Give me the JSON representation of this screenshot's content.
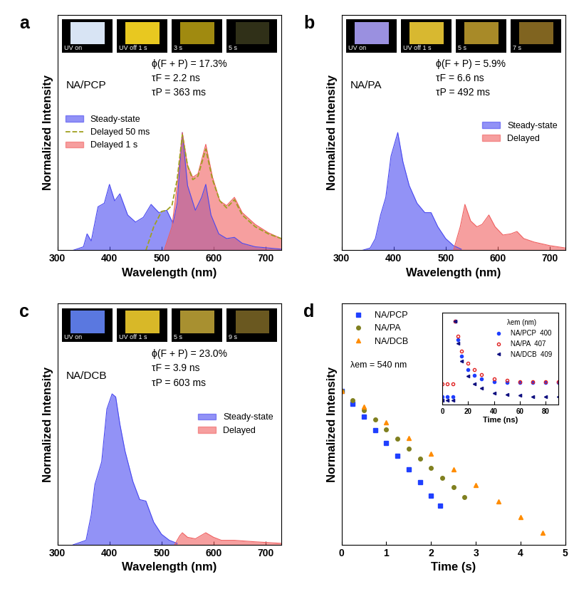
{
  "chart_data": [
    {
      "type": "area",
      "panel_label": "a",
      "xlabel": "Wavelength (nm)",
      "ylabel": "Normalized Intensity",
      "xlim": [
        300,
        730
      ],
      "xticks": [
        300,
        400,
        500,
        600,
        700
      ],
      "ylim": [
        0,
        2.0
      ],
      "tick_labels": "x",
      "legend": "center left",
      "annotations": [
        "NA/PCP",
        "ϕ(F + P) = 17.3%",
        "τF = 2.2 ns",
        "τP = 363 ms"
      ],
      "photos": {
        "labels": [
          "UV on",
          "UV off 1 s",
          "3 s",
          "5 s"
        ],
        "colors": [
          "#d8e4f4",
          "#e8c820",
          "#a08a10",
          "#303018"
        ]
      },
      "series": [
        {
          "name": "Steady-state",
          "color": "#4a4af0",
          "x": [
            330,
            350,
            357,
            365,
            378,
            390,
            400,
            410,
            420,
            435,
            450,
            465,
            480,
            495,
            510,
            522,
            530,
            540,
            550,
            565,
            577,
            585,
            595,
            610,
            625,
            640,
            655,
            680,
            730
          ],
          "values": [
            0,
            0.03,
            0.14,
            0.08,
            0.37,
            0.4,
            0.56,
            0.42,
            0.48,
            0.3,
            0.24,
            0.28,
            0.39,
            0.32,
            0.34,
            0.23,
            0.4,
            1.0,
            0.55,
            0.34,
            0.45,
            0.56,
            0.3,
            0.14,
            0.1,
            0.11,
            0.06,
            0.03,
            0.01
          ]
        },
        {
          "name": "Delayed 50 ms",
          "color": "#a0a020",
          "line_style": "dashed",
          "x": [
            470,
            485,
            500,
            510,
            520,
            530,
            540,
            550,
            560,
            570,
            585,
            598,
            612,
            625,
            640,
            655,
            680,
            705,
            730
          ],
          "values": [
            0.0,
            0.2,
            0.33,
            0.34,
            0.38,
            0.6,
            0.98,
            0.72,
            0.6,
            0.63,
            0.86,
            0.6,
            0.42,
            0.36,
            0.43,
            0.3,
            0.2,
            0.14,
            0.1
          ]
        },
        {
          "name": "Delayed 1 s",
          "color": "#f06060",
          "x": [
            505,
            520,
            530,
            540,
            550,
            560,
            570,
            585,
            598,
            612,
            625,
            640,
            655,
            680,
            705,
            730
          ],
          "values": [
            0,
            0.2,
            0.55,
            1.0,
            0.72,
            0.62,
            0.65,
            0.9,
            0.62,
            0.42,
            0.38,
            0.45,
            0.32,
            0.22,
            0.15,
            0.1
          ]
        }
      ]
    },
    {
      "type": "area",
      "panel_label": "b",
      "xlabel": "Wavelength (nm)",
      "ylabel": "Normalized Intensity",
      "xlim": [
        300,
        730
      ],
      "xticks": [
        300,
        400,
        500,
        600,
        700
      ],
      "ylim": [
        0,
        2.0
      ],
      "tick_labels": "x",
      "legend": "center right",
      "annotations": [
        "NA/PA",
        "ϕ(F + P) = 5.9%",
        "τF = 6.6 ns",
        "τP = 492 ms"
      ],
      "photos": {
        "labels": [
          "UV on",
          "UV off 1 s",
          "5 s",
          "7 s"
        ],
        "colors": [
          "#9a90e0",
          "#d8b830",
          "#a88a28",
          "#806420"
        ]
      },
      "series": [
        {
          "name": "Steady-state",
          "color": "#4a4af0",
          "x": [
            340,
            355,
            365,
            375,
            385,
            395,
            408,
            418,
            430,
            445,
            460,
            472,
            485,
            500,
            515,
            530
          ],
          "values": [
            0,
            0.02,
            0.1,
            0.3,
            0.45,
            0.8,
            1.0,
            0.75,
            0.55,
            0.4,
            0.32,
            0.32,
            0.2,
            0.1,
            0.04,
            0.01
          ]
        },
        {
          "name": "Delayed",
          "color": "#f06060",
          "x": [
            515,
            528,
            537,
            548,
            560,
            570,
            583,
            595,
            610,
            625,
            637,
            650,
            670,
            700,
            730
          ],
          "values": [
            0,
            0.2,
            0.39,
            0.25,
            0.2,
            0.22,
            0.3,
            0.2,
            0.13,
            0.14,
            0.16,
            0.1,
            0.07,
            0.04,
            0.02
          ]
        }
      ]
    },
    {
      "type": "area",
      "panel_label": "c",
      "xlabel": "Wavelength (nm)",
      "ylabel": "Normalized Intensity",
      "xlim": [
        300,
        730
      ],
      "xticks": [
        300,
        400,
        500,
        600,
        700
      ],
      "ylim": [
        0,
        1.6
      ],
      "tick_labels": "x",
      "legend": "center right",
      "annotations": [
        "NA/DCB",
        "ϕ(F + P) = 23.0%",
        "τF = 3.9 ns",
        "τP = 603 ms"
      ],
      "photos": {
        "labels": [
          "UV on",
          "UV off 1 s",
          "5 s",
          "9 s"
        ],
        "colors": [
          "#5a78e0",
          "#d8b828",
          "#a89030",
          "#6a5820"
        ]
      },
      "series": [
        {
          "name": "Steady-state",
          "color": "#4a4af0",
          "x": [
            330,
            355,
            365,
            372,
            385,
            395,
            405,
            412,
            420,
            430,
            445,
            458,
            470,
            485,
            500,
            515,
            530
          ],
          "values": [
            0,
            0.03,
            0.2,
            0.4,
            0.55,
            0.9,
            1.0,
            0.98,
            0.8,
            0.62,
            0.42,
            0.3,
            0.29,
            0.15,
            0.07,
            0.03,
            0.01
          ]
        },
        {
          "name": "Delayed",
          "color": "#f06060",
          "x": [
            525,
            535,
            540,
            550,
            565,
            585,
            600,
            615,
            640,
            680,
            730
          ],
          "values": [
            0,
            0.06,
            0.08,
            0.05,
            0.04,
            0.08,
            0.05,
            0.03,
            0.03,
            0.02,
            0.01
          ]
        }
      ]
    },
    {
      "type": "scatter",
      "panel_label": "d",
      "xlabel": "Time (s)",
      "ylabel": "Normalized Intensity",
      "log": "y",
      "xlim": [
        0,
        5
      ],
      "xticks": [
        0,
        1,
        2,
        3,
        4,
        5
      ],
      "ylim": [
        0.0003,
        100
      ],
      "tick_labels": "x",
      "legend": "upper left",
      "annotations": [
        "λem = 540 nm"
      ],
      "series": [
        {
          "name": "NA/PCP",
          "color": "#1f3fff",
          "marker": "square",
          "x": [
            0,
            0.25,
            0.5,
            0.75,
            1,
            1.25,
            1.5,
            1.75,
            2,
            2.2
          ],
          "values": [
            1,
            0.502,
            0.252,
            0.127,
            0.0637,
            0.032,
            0.0161,
            0.0081,
            0.004,
            0.0024
          ]
        },
        {
          "name": "NA/PA",
          "color": "#808020",
          "marker": "circle",
          "x": [
            0,
            0.25,
            0.5,
            0.75,
            1,
            1.25,
            1.5,
            1.75,
            2,
            2.25,
            2.5,
            2.75
          ],
          "values": [
            1,
            0.602,
            0.362,
            0.218,
            0.131,
            0.0788,
            0.0474,
            0.0285,
            0.0171,
            0.0103,
            0.0062,
            0.0037
          ]
        },
        {
          "name": "NA/DCB",
          "color": "#ff8c00",
          "marker": "triangle",
          "x": [
            0,
            0.5,
            1,
            1.5,
            2,
            2.5,
            3,
            3.5,
            4,
            4.5
          ],
          "values": [
            1,
            0.436,
            0.19,
            0.0831,
            0.0362,
            0.0158,
            0.0069,
            0.003,
            0.0013,
            0.00057
          ]
        }
      ],
      "inset": {
        "type": "scatter",
        "xlabel": "Time (ns)",
        "xlim": [
          0,
          90
        ],
        "xticks": [
          0,
          20,
          40,
          60,
          80
        ],
        "ylim": [
          0,
          1.1
        ],
        "tick_labels": "x",
        "legend": "upper right",
        "legend_title": "λem (nm)",
        "series": [
          {
            "name": "NA/PCP  400",
            "color": "#1f3fff",
            "marker": "circle",
            "x": [
              0,
              4,
              8,
              10,
              12,
              15,
              20,
              25,
              30,
              40,
              50,
              60,
              70,
              80,
              90
            ],
            "values": [
              0.1,
              0.1,
              0.1,
              1.0,
              0.78,
              0.58,
              0.42,
              0.35,
              0.31,
              0.28,
              0.27,
              0.27,
              0.27,
              0.27,
              0.27
            ]
          },
          {
            "name": "NA/PA  407",
            "color": "#e02020",
            "marker": "open circle",
            "x": [
              0,
              4,
              8,
              10,
              12,
              15,
              20,
              25,
              30,
              40,
              50,
              60,
              70,
              80,
              90
            ],
            "values": [
              0.25,
              0.25,
              0.25,
              1.0,
              0.82,
              0.64,
              0.5,
              0.42,
              0.36,
              0.31,
              0.29,
              0.28,
              0.28,
              0.28,
              0.28
            ]
          },
          {
            "name": "NA/DCB  409",
            "color": "#101080",
            "marker": "left triangle",
            "x": [
              0,
              4,
              8,
              10,
              12,
              15,
              20,
              25,
              30,
              40,
              50,
              60,
              70,
              80,
              90
            ],
            "values": [
              0.05,
              0.05,
              0.05,
              1.0,
              0.74,
              0.52,
              0.34,
              0.25,
              0.2,
              0.14,
              0.12,
              0.11,
              0.1,
              0.1,
              0.1
            ]
          }
        ]
      }
    }
  ]
}
